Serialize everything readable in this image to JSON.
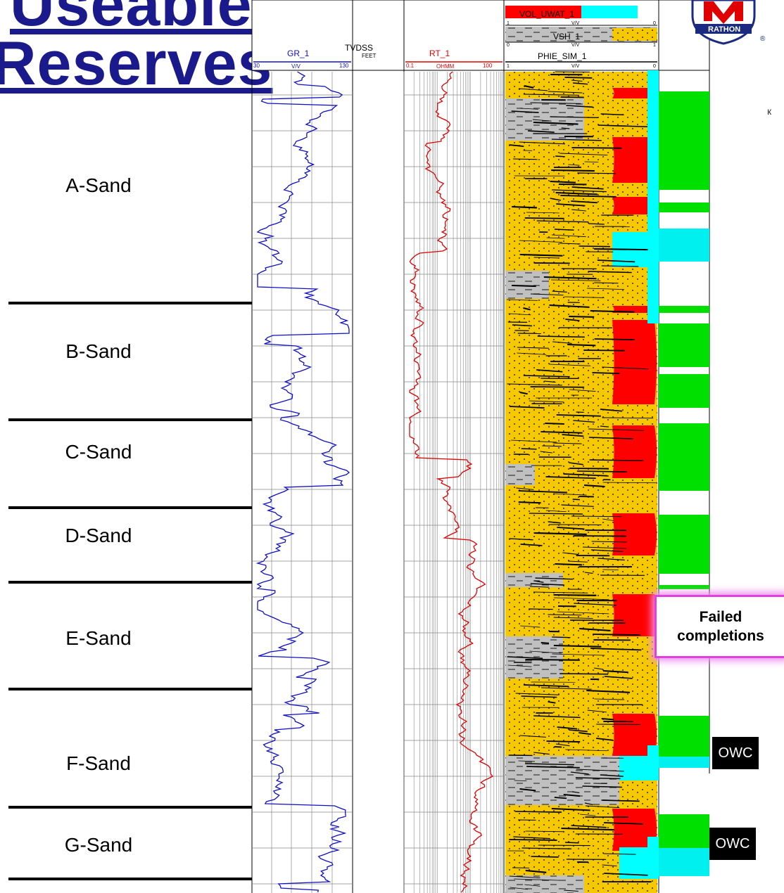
{
  "title_line1": "Useable Reserves",
  "title_line2": "Reserves",
  "tracks": {
    "gr": {
      "name": "GR_1",
      "unit": "V/V",
      "min": "30",
      "max": "130",
      "color": "#1010c0"
    },
    "depth": {
      "name": "TVDSS",
      "unit": "FEET"
    },
    "rt": {
      "name": "RT_1",
      "unit": "OHMM",
      "min": "0.1",
      "max": "100",
      "color": "#e00000"
    },
    "vol_uwat": {
      "name": "VOL_UWAT_1",
      "unit": "V/V",
      "min": "1",
      "max": "0"
    },
    "vsh": {
      "name": "VSH_1",
      "unit": "V/V",
      "min": "0",
      "max": "1"
    },
    "phie": {
      "name": "PHIE_SIM_1",
      "unit": "V/V",
      "min": "1",
      "max": "0"
    }
  },
  "zones": [
    {
      "name": "A-Sand"
    },
    {
      "name": "B-Sand"
    },
    {
      "name": "C-Sand"
    },
    {
      "name": "D-Sand"
    },
    {
      "name": "E-Sand"
    },
    {
      "name": "F-Sand"
    },
    {
      "name": "G-Sand"
    }
  ],
  "annotations": {
    "failed_line1": "Failed",
    "failed_line2": "completions",
    "owc": "OWC",
    "logo_text": "RATHON",
    "k_mark": "к"
  },
  "colors": {
    "sand": "#f5c800",
    "shale": "#c0c0c0",
    "hydrocarbon": "#ff0000",
    "water": "#00ffff",
    "completion_green": "#00e000",
    "completion_cyan": "#00f0f0",
    "title": "#1a1a8c"
  }
}
